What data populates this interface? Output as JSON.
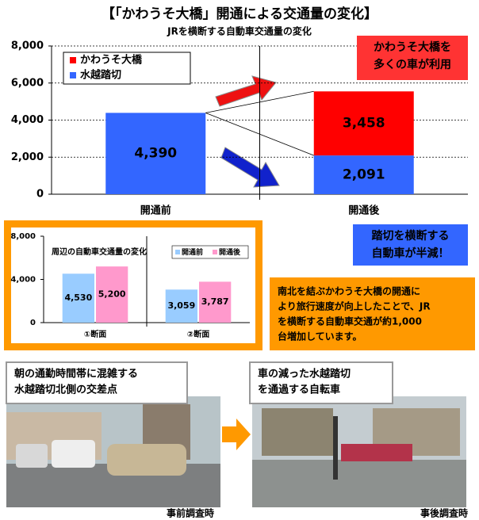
{
  "title": "【「かわうそ大橋」開通による交通量の変化】",
  "chart_data": [
    {
      "type": "bar",
      "stacked": true,
      "subtitle": "JRを横断する自動車交通量の変化",
      "categories": [
        "開通前",
        "開通後"
      ],
      "series": [
        {
          "name": "水越踏切",
          "color": "#3366ff",
          "values": [
            4390,
            2091
          ],
          "value_labels": [
            "4,390",
            "2,091"
          ]
        },
        {
          "name": "かわうそ大橋",
          "color": "#ff0000",
          "values": [
            null,
            3458
          ],
          "value_labels": [
            null,
            "3,458"
          ]
        }
      ],
      "ylim": [
        0,
        8000
      ],
      "yticks": [
        0,
        {
          "value": 2000,
          "label": "2,000"
        },
        {
          "value": 4000,
          "label": "4,000"
        },
        {
          "value": 6000,
          "label": "6,000"
        },
        {
          "value": 8000,
          "label": "8,000"
        }
      ],
      "grid": true,
      "legend": "upper left",
      "annotations": [
        {
          "lines": [
            "かわうそ大橋を",
            "多くの車が利用"
          ],
          "color": "#ff3333"
        },
        {
          "lines": [
            "踏切を横断する",
            "自動車が半減！"
          ],
          "color": "#3366ff"
        }
      ]
    },
    {
      "type": "bar",
      "stacked": false,
      "title": "周辺の自動車交通量の変化",
      "categories": [
        "①断面",
        "②断面"
      ],
      "series": [
        {
          "name": "開通前",
          "color": "#99ccff",
          "values": [
            4530,
            3059
          ],
          "value_labels": [
            "4,530",
            "3,059"
          ]
        },
        {
          "name": "開通後",
          "color": "#ff99cc",
          "values": [
            5200,
            3787
          ],
          "value_labels": [
            "5,200",
            "3,787"
          ]
        }
      ],
      "ylim": [
        0,
        8000
      ],
      "yticks": [
        0,
        {
          "value": 4000,
          "label": "4,000"
        },
        {
          "value": 8000,
          "label": "8,000"
        }
      ],
      "grid": false,
      "legend": "upper right"
    }
  ],
  "note": [
    "南北を結ぶかわうそ大橋の開通に",
    "より旅行速度が向上したことで、JR",
    "を横断する自動車交通が約1,000",
    "台増加しています。"
  ],
  "photos": [
    {
      "caption": [
        "朝の通勤時間帯に混雑する",
        "水越踏切北側の交差点"
      ],
      "label": "事前調査時"
    },
    {
      "caption": [
        "車の減った水越踏切",
        "を通過する自転車"
      ],
      "label": "事後調査時"
    }
  ]
}
